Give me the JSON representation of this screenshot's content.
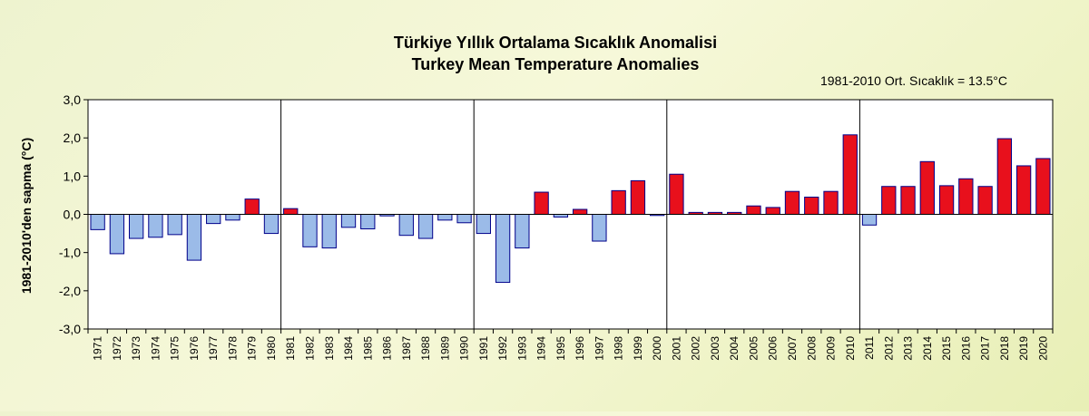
{
  "chart_data": {
    "type": "bar",
    "title": "Türkiye Yıllık Ortalama Sıcaklık Anomalisi",
    "subtitle": "Turkey Mean Temperature Anomalies",
    "annotation": "1981-2010 Ort. Sıcaklık = 13.5°C",
    "ylabel": "1981-2010'den sapma (°C)",
    "xlabel": "",
    "ylim": [
      -3,
      3
    ],
    "yticks": [
      3,
      2,
      1,
      0,
      -1,
      -2,
      -3
    ],
    "ytick_labels": [
      "3,0",
      "2,0",
      "1,0",
      "0,0",
      "-1,0",
      "-2,0",
      "-3,0"
    ],
    "grid": "vertical lines every 10 years",
    "colors": {
      "positive": "#e8101c",
      "negative": "#9bbbe8",
      "border": "#00008a",
      "plot_bg": "#ffffff"
    },
    "categories": [
      "1971",
      "1972",
      "1973",
      "1974",
      "1975",
      "1976",
      "1977",
      "1978",
      "1979",
      "1980",
      "1981",
      "1982",
      "1983",
      "1984",
      "1985",
      "1986",
      "1987",
      "1988",
      "1989",
      "1990",
      "1991",
      "1992",
      "1993",
      "1994",
      "1995",
      "1996",
      "1997",
      "1998",
      "1999",
      "2000",
      "2001",
      "2002",
      "2003",
      "2004",
      "2005",
      "2006",
      "2007",
      "2008",
      "2009",
      "2010",
      "2011",
      "2012",
      "2013",
      "2014",
      "2015",
      "2016",
      "2017",
      "2018",
      "2019",
      "2020"
    ],
    "values": [
      -0.4,
      -1.03,
      -0.63,
      -0.6,
      -0.53,
      -1.2,
      -0.24,
      -0.15,
      0.4,
      -0.5,
      0.15,
      -0.85,
      -0.88,
      -0.34,
      -0.38,
      -0.04,
      -0.55,
      -0.63,
      -0.15,
      -0.22,
      -0.5,
      -1.78,
      -0.88,
      0.58,
      -0.07,
      0.13,
      -0.7,
      0.62,
      0.88,
      -0.03,
      1.05,
      0.05,
      0.05,
      0.05,
      0.22,
      0.18,
      0.6,
      0.45,
      0.6,
      2.08,
      -0.28,
      0.73,
      0.73,
      1.38,
      0.75,
      0.93,
      0.73,
      1.98,
      1.27,
      1.46
    ]
  }
}
